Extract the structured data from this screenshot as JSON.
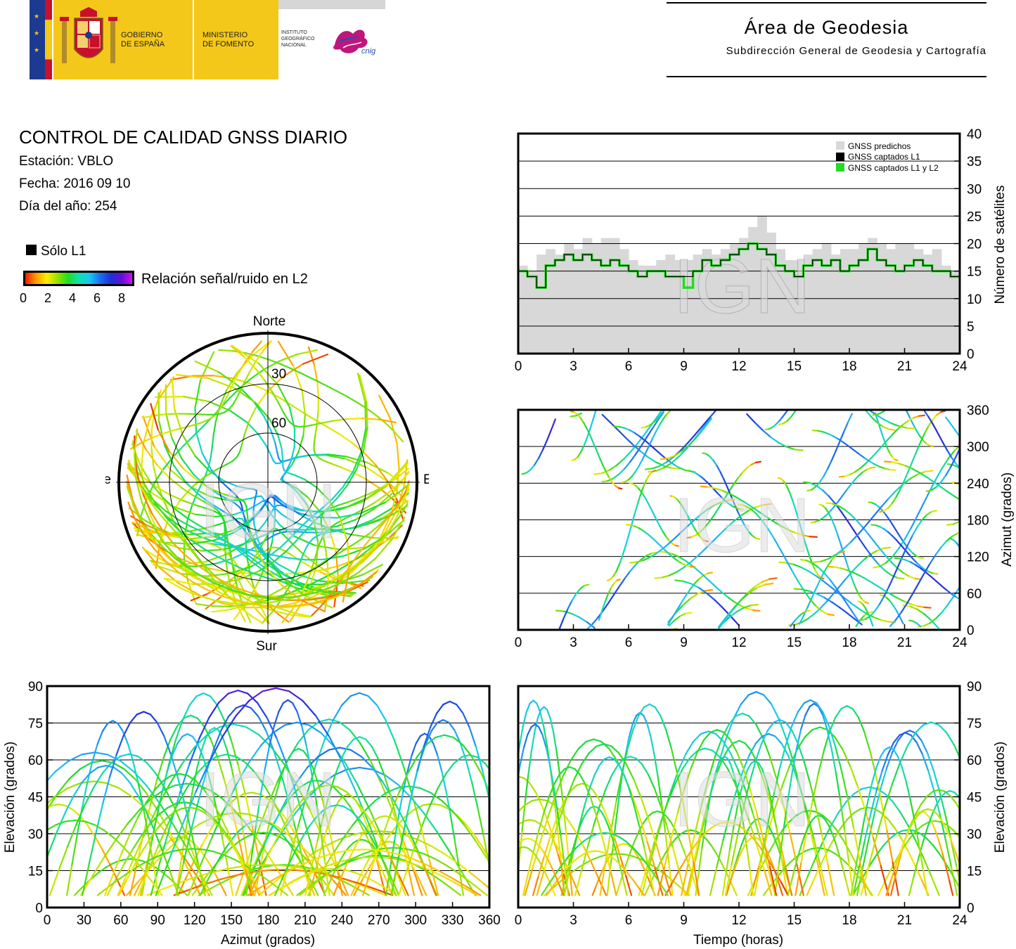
{
  "header": {
    "gov_line1": "GOBIERNO",
    "gov_line2": "DE ESPAÑA",
    "min_line1": "MINISTERIO",
    "min_line2": "DE FOMENTO",
    "ign_line1": "INSTITUTO",
    "ign_line2": "GEOGRÁFICO",
    "ign_line3": "NACIONAL",
    "cnig_label": "cnig",
    "area_title": "Área de Geodesia",
    "area_subtitle": "Subdirección General de Geodesia y Cartografía",
    "colors": {
      "gold": "#f4c81a",
      "flag_blue": "#1c3a8f",
      "flag_red": "#c8102e",
      "cnig_magenta": "#c0157a"
    }
  },
  "info": {
    "title": "CONTROL DE CALIDAD GNSS DIARIO",
    "station": "Estación: VBLO",
    "date": "Fecha: 2016 09 10",
    "doy": "Día del año: 254",
    "legend_l1": "Sólo L1",
    "legend_snr": "Relación señal/ruido en L2",
    "colorbar_ticks": [
      "0",
      "2",
      "4",
      "6",
      "8"
    ]
  },
  "watermark": "IGN",
  "chart_data": [
    {
      "id": "satellite-count",
      "type": "area",
      "xlabel": "",
      "ylabel": "Número de satélites",
      "xlim": [
        0,
        24
      ],
      "ylim": [
        0,
        40
      ],
      "xticks": [
        "0",
        "3",
        "6",
        "9",
        "12",
        "15",
        "18",
        "21",
        "24"
      ],
      "yticks": [
        "0",
        "5",
        "10",
        "15",
        "20",
        "25",
        "30",
        "35",
        "40"
      ],
      "grid": true,
      "legend_position": "top-right",
      "series": [
        {
          "name": "GNSS predichos",
          "color": "#d8d8d8",
          "hours": [
            0,
            0.5,
            1,
            1.5,
            2,
            2.5,
            3,
            3.5,
            4,
            4.5,
            5,
            5.5,
            6,
            6.5,
            7,
            7.5,
            8,
            8.5,
            9,
            9.5,
            10,
            10.5,
            11,
            11.5,
            12,
            12.5,
            13,
            13.5,
            14,
            14.5,
            15,
            15.5,
            16,
            16.5,
            17,
            17.5,
            18,
            18.5,
            19,
            19.5,
            20,
            20.5,
            21,
            21.5,
            22,
            22.5,
            23,
            23.5,
            24
          ],
          "values": [
            16,
            15,
            18,
            19,
            18,
            20,
            19,
            21,
            20,
            21,
            21,
            19,
            17,
            16,
            16,
            17,
            18,
            17,
            17,
            18,
            19,
            18,
            19,
            20,
            21,
            23,
            25,
            22,
            19,
            17,
            17,
            18,
            19,
            20,
            18,
            19,
            19,
            20,
            21,
            20,
            19,
            20,
            20,
            19,
            18,
            19,
            16,
            15,
            15
          ]
        },
        {
          "name": "GNSS captados L1",
          "color": "#000000",
          "hours": [
            0,
            0.5,
            1,
            1.5,
            2,
            2.5,
            3,
            3.5,
            4,
            4.5,
            5,
            5.5,
            6,
            6.5,
            7,
            7.5,
            8,
            8.5,
            9,
            9.5,
            10,
            10.5,
            11,
            11.5,
            12,
            12.5,
            13,
            13.5,
            14,
            14.5,
            15,
            15.5,
            16,
            16.5,
            17,
            17.5,
            18,
            18.5,
            19,
            19.5,
            20,
            20.5,
            21,
            21.5,
            22,
            22.5,
            23,
            23.5,
            24
          ],
          "values": [
            15,
            14,
            12,
            16,
            17,
            18,
            17,
            18,
            17,
            16,
            17,
            16,
            15,
            14,
            15,
            15,
            14,
            14,
            14,
            15,
            17,
            16,
            17,
            18,
            19,
            20,
            19,
            18,
            16,
            15,
            14,
            16,
            17,
            16,
            17,
            15,
            16,
            17,
            19,
            17,
            16,
            15,
            16,
            17,
            16,
            15,
            15,
            14,
            14
          ]
        },
        {
          "name": "GNSS captados L1 y L2",
          "color": "#22dd22",
          "hours": [
            0,
            0.5,
            1,
            1.5,
            2,
            2.5,
            3,
            3.5,
            4,
            4.5,
            5,
            5.5,
            6,
            6.5,
            7,
            7.5,
            8,
            8.5,
            9,
            9.5,
            10,
            10.5,
            11,
            11.5,
            12,
            12.5,
            13,
            13.5,
            14,
            14.5,
            15,
            15.5,
            16,
            16.5,
            17,
            17.5,
            18,
            18.5,
            19,
            19.5,
            20,
            20.5,
            21,
            21.5,
            22,
            22.5,
            23,
            23.5,
            24
          ],
          "values": [
            15,
            14,
            12,
            16,
            17,
            18,
            17,
            18,
            17,
            16,
            17,
            16,
            15,
            14,
            15,
            15,
            14,
            14,
            12,
            15,
            17,
            16,
            17,
            18,
            19,
            20,
            19,
            18,
            16,
            15,
            14,
            16,
            17,
            16,
            17,
            15,
            16,
            17,
            19,
            17,
            16,
            15,
            16,
            17,
            16,
            15,
            15,
            14,
            14
          ]
        }
      ]
    },
    {
      "id": "skyplot",
      "type": "scatter",
      "projection": "polar",
      "direction_labels": {
        "north": "Norte",
        "south": "Sur",
        "west": "Oeste",
        "east": "Este"
      },
      "elevation_rings": [
        "30",
        "60"
      ],
      "color_scale": {
        "label": "Relación señal/ruido en L2",
        "range": [
          0,
          8
        ]
      },
      "note": "satellite tracks colored by SNR"
    },
    {
      "id": "azimuth-time",
      "type": "scatter",
      "xlabel": "",
      "ylabel": "Azimut (grados)",
      "xlim": [
        0,
        24
      ],
      "ylim": [
        0,
        360
      ],
      "xticks": [
        "0",
        "3",
        "6",
        "9",
        "12",
        "15",
        "18",
        "21",
        "24"
      ],
      "yticks": [
        "0",
        "60",
        "120",
        "180",
        "240",
        "300",
        "360"
      ],
      "grid": true
    },
    {
      "id": "elevation-azimuth",
      "type": "scatter",
      "xlabel": "Azimut (grados)",
      "ylabel": "Elevación (grados)",
      "xlim": [
        0,
        360
      ],
      "ylim": [
        0,
        90
      ],
      "xticks": [
        "0",
        "30",
        "60",
        "90",
        "120",
        "150",
        "180",
        "210",
        "240",
        "270",
        "300",
        "330",
        "360"
      ],
      "yticks": [
        "0",
        "15",
        "30",
        "45",
        "60",
        "75",
        "90"
      ],
      "grid": true
    },
    {
      "id": "elevation-time",
      "type": "scatter",
      "xlabel": "Tiempo (horas)",
      "ylabel": "Elevación (grados)",
      "xlim": [
        0,
        24
      ],
      "ylim": [
        0,
        90
      ],
      "xticks": [
        "0",
        "3",
        "6",
        "9",
        "12",
        "15",
        "18",
        "21",
        "24"
      ],
      "yticks": [
        "0",
        "15",
        "30",
        "45",
        "60",
        "75",
        "90"
      ],
      "grid": true
    }
  ]
}
